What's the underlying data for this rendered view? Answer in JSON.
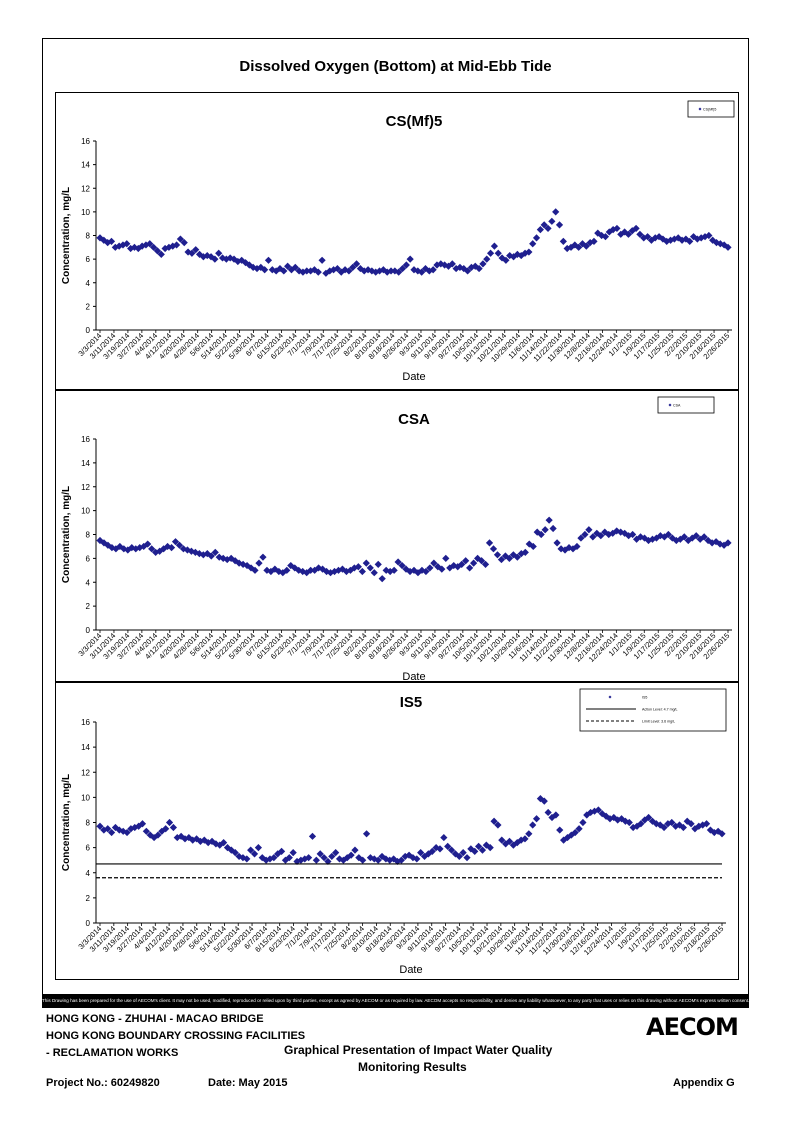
{
  "page_title": "Dissolved Oxygen (Bottom) at Mid-Ebb Tide",
  "footer": {
    "disclaimer": "This Drawing has been prepared for the use of AECOM's client. It may not be used, modified, reproduced or relied upon by third parties, except as agreed by AECOM or as required by law. AECOM accepts no responsibility, and denies any liability whatsoever, to any party that uses or relies on this drawing without AECOM's express written consent.",
    "line1": "HONG KONG - ZHUHAI - MACAO BRIDGE",
    "line2": "HONG KONG BOUNDARY CROSSING FACILITIES",
    "line3": "- RECLAMATION WORKS",
    "center1": "Graphical Presentation of Impact Water Quality",
    "center2": "Monitoring Results",
    "project": "Project No.: 60249820",
    "date": "Date: May 2015",
    "appendix": "Appendix G",
    "logo": "AECOM"
  },
  "chart_data": [
    {
      "type": "scatter",
      "title": "CS(Mf)5",
      "xlabel": "Date",
      "ylabel": "Concentration, mg/L",
      "ylim": [
        0,
        16
      ],
      "yticks": [
        0,
        2,
        4,
        6,
        8,
        10,
        12,
        14,
        16
      ],
      "grid": false,
      "legend": "top-right",
      "series": [
        {
          "name": "CS(Mf)5",
          "color": "#1f1f8f",
          "marker": "diamond",
          "values": [
            7.8,
            7.6,
            7.4,
            7.5,
            7.0,
            7.1,
            7.2,
            7.3,
            6.9,
            7.0,
            6.9,
            7.1,
            7.2,
            7.3,
            7.0,
            6.7,
            6.4,
            6.9,
            7.0,
            7.1,
            7.2,
            7.7,
            7.4,
            6.6,
            6.5,
            6.8,
            6.4,
            6.2,
            6.3,
            6.2,
            6.0,
            6.5,
            6.1,
            6.0,
            6.1,
            6.0,
            5.8,
            5.9,
            5.7,
            5.5,
            5.3,
            5.2,
            5.3,
            5.1,
            5.9,
            5.1,
            5.0,
            5.2,
            5.0,
            5.4,
            5.1,
            5.3,
            5.0,
            4.9,
            5.0,
            5.0,
            5.1,
            4.9,
            5.9,
            4.8,
            5.0,
            5.1,
            5.2,
            4.9,
            5.1,
            5.0,
            5.3,
            5.6,
            5.2,
            5.0,
            5.1,
            5.0,
            4.9,
            5.0,
            5.1,
            4.9,
            5.0,
            5.0,
            4.9,
            5.2,
            5.5,
            6.0,
            5.1,
            5.0,
            4.9,
            5.2,
            5.0,
            5.1,
            5.5,
            5.6,
            5.5,
            5.4,
            5.6,
            5.2,
            5.3,
            5.2,
            5.0,
            5.3,
            5.4,
            5.2,
            5.6,
            6.0,
            6.5,
            7.1,
            6.5,
            6.1,
            5.9,
            6.3,
            6.2,
            6.4,
            6.3,
            6.5,
            6.6,
            7.3,
            7.8,
            8.5,
            8.9,
            8.6,
            9.2,
            10.0,
            8.9,
            7.5,
            6.9,
            7.0,
            7.2,
            7.0,
            7.3,
            7.1,
            7.4,
            7.5,
            8.2,
            8.0,
            7.9,
            8.3,
            8.5,
            8.6,
            8.1,
            8.3,
            8.1,
            8.4,
            8.6,
            8.1,
            7.8,
            7.9,
            7.6,
            7.8,
            7.9,
            7.7,
            7.5,
            7.6,
            7.7,
            7.8,
            7.6,
            7.7,
            7.5,
            7.9,
            7.7,
            7.8,
            7.9,
            8.0,
            7.6,
            7.4,
            7.3,
            7.2,
            7.0
          ]
        }
      ]
    },
    {
      "type": "scatter",
      "title": "CSA",
      "xlabel": "Date",
      "ylabel": "Concentration, mg/L",
      "ylim": [
        0,
        16
      ],
      "yticks": [
        0,
        2,
        4,
        6,
        8,
        10,
        12,
        14,
        16
      ],
      "grid": false,
      "legend": "top-right",
      "series": [
        {
          "name": "CSA",
          "color": "#1f1f8f",
          "marker": "diamond",
          "values": [
            7.5,
            7.3,
            7.1,
            6.9,
            6.8,
            7.0,
            6.8,
            6.7,
            6.9,
            6.8,
            6.9,
            7.0,
            7.2,
            6.8,
            6.5,
            6.6,
            6.8,
            7.0,
            6.9,
            7.4,
            7.1,
            6.8,
            6.7,
            6.6,
            6.5,
            6.4,
            6.3,
            6.4,
            6.2,
            6.5,
            6.1,
            6.0,
            5.9,
            6.0,
            5.8,
            5.6,
            5.5,
            5.4,
            5.2,
            5.0,
            5.6,
            6.1,
            5.0,
            4.9,
            5.1,
            4.9,
            4.8,
            5.0,
            5.4,
            5.2,
            5.0,
            4.9,
            4.8,
            5.0,
            5.0,
            5.2,
            5.1,
            4.9,
            4.8,
            4.9,
            5.0,
            5.1,
            4.9,
            5.0,
            5.2,
            5.3,
            4.9,
            5.6,
            5.2,
            4.8,
            5.5,
            4.3,
            5.0,
            4.9,
            5.0,
            5.7,
            5.4,
            5.1,
            4.9,
            5.0,
            4.8,
            5.0,
            4.9,
            5.2,
            5.6,
            5.3,
            5.1,
            6.0,
            5.2,
            5.4,
            5.3,
            5.5,
            5.8,
            5.2,
            5.6,
            6.0,
            5.8,
            5.5,
            7.3,
            6.8,
            6.3,
            5.9,
            6.2,
            6.0,
            6.3,
            6.1,
            6.4,
            6.5,
            7.2,
            7.0,
            8.2,
            8.0,
            8.4,
            9.2,
            8.5,
            7.3,
            6.8,
            6.7,
            6.9,
            6.8,
            7.0,
            7.7,
            8.0,
            8.4,
            7.8,
            8.1,
            7.9,
            8.2,
            8.0,
            8.1,
            8.3,
            8.2,
            8.1,
            7.9,
            8.0,
            7.6,
            7.8,
            7.7,
            7.5,
            7.6,
            7.7,
            7.9,
            7.8,
            8.0,
            7.7,
            7.5,
            7.6,
            7.8,
            7.5,
            7.7,
            7.9,
            7.6,
            7.8,
            7.5,
            7.3,
            7.4,
            7.2,
            7.1,
            7.3
          ]
        }
      ]
    },
    {
      "type": "scatter",
      "title": "IS5",
      "xlabel": "Date",
      "ylabel": "Concentration, mg/L",
      "ylim": [
        0,
        16
      ],
      "yticks": [
        0,
        2,
        4,
        6,
        8,
        10,
        12,
        14,
        16
      ],
      "grid": false,
      "legend": "top-right",
      "series": [
        {
          "name": "IS5",
          "color": "#1f1f8f",
          "marker": "diamond",
          "values": [
            7.7,
            7.4,
            7.5,
            7.2,
            7.6,
            7.4,
            7.3,
            7.2,
            7.5,
            7.6,
            7.7,
            7.9,
            7.3,
            7.0,
            6.8,
            7.0,
            7.3,
            7.5,
            8.0,
            7.6,
            6.8,
            6.9,
            6.7,
            6.8,
            6.6,
            6.7,
            6.5,
            6.6,
            6.4,
            6.5,
            6.3,
            6.2,
            6.4,
            6.0,
            5.8,
            5.6,
            5.3,
            5.2,
            5.1,
            5.8,
            5.5,
            6.0,
            5.2,
            5.0,
            5.1,
            5.2,
            5.5,
            5.7,
            5.0,
            5.2,
            5.6,
            4.9,
            5.0,
            5.1,
            5.2,
            6.9,
            5.0,
            5.5,
            5.2,
            4.9,
            5.3,
            5.6,
            5.1,
            5.0,
            5.2,
            5.4,
            5.8,
            5.2,
            5.0,
            7.1,
            5.2,
            5.1,
            5.0,
            5.3,
            5.1,
            5.0,
            5.1,
            4.9,
            5.0,
            5.3,
            5.4,
            5.2,
            5.1,
            5.6,
            5.3,
            5.5,
            5.7,
            6.0,
            5.9,
            6.8,
            6.1,
            5.8,
            5.5,
            5.3,
            5.6,
            5.2,
            5.9,
            5.7,
            6.1,
            5.8,
            6.2,
            6.0,
            8.1,
            7.8,
            6.6,
            6.3,
            6.5,
            6.2,
            6.4,
            6.6,
            6.7,
            7.1,
            7.8,
            8.3,
            9.9,
            9.7,
            8.8,
            8.4,
            8.6,
            7.4,
            6.6,
            6.8,
            7.0,
            7.2,
            7.5,
            8.0,
            8.6,
            8.8,
            8.9,
            9.0,
            8.7,
            8.5,
            8.3,
            8.4,
            8.2,
            8.3,
            8.1,
            8.0,
            7.6,
            7.7,
            7.9,
            8.2,
            8.4,
            8.1,
            7.9,
            7.8,
            7.6,
            7.9,
            8.0,
            7.7,
            7.8,
            7.6,
            8.1,
            7.9,
            7.5,
            7.7,
            7.8,
            7.9,
            7.4,
            7.2,
            7.3,
            7.1
          ]
        },
        {
          "name": "Action Level: 4.7 mg/L",
          "type": "hline",
          "value": 4.7,
          "color": "#000000",
          "dash": "solid"
        },
        {
          "name": "Limit Level: 3.6 mg/L",
          "type": "hline",
          "value": 3.6,
          "color": "#000000",
          "dash": "dashed"
        }
      ]
    }
  ],
  "x_tick_labels": [
    "3/3/2014",
    "3/11/2014",
    "3/19/2014",
    "3/27/2014",
    "4/4/2014",
    "4/12/2014",
    "4/20/2014",
    "4/28/2014",
    "5/6/2014",
    "5/14/2014",
    "5/22/2014",
    "5/30/2014",
    "6/7/2014",
    "6/15/2014",
    "6/23/2014",
    "7/1/2014",
    "7/9/2014",
    "7/17/2014",
    "7/25/2014",
    "8/2/2014",
    "8/10/2014",
    "8/18/2014",
    "8/26/2014",
    "9/3/2014",
    "9/11/2014",
    "9/19/2014",
    "9/27/2014",
    "10/5/2014",
    "10/13/2014",
    "10/21/2014",
    "10/29/2014",
    "11/6/2014",
    "11/14/2014",
    "11/22/2014",
    "11/30/2014",
    "12/8/2014",
    "12/16/2014",
    "12/24/2014",
    "1/1/2015",
    "1/9/2015",
    "1/17/2015",
    "1/25/2015",
    "2/2/2015",
    "2/10/2015",
    "2/18/2015",
    "2/26/2015"
  ]
}
